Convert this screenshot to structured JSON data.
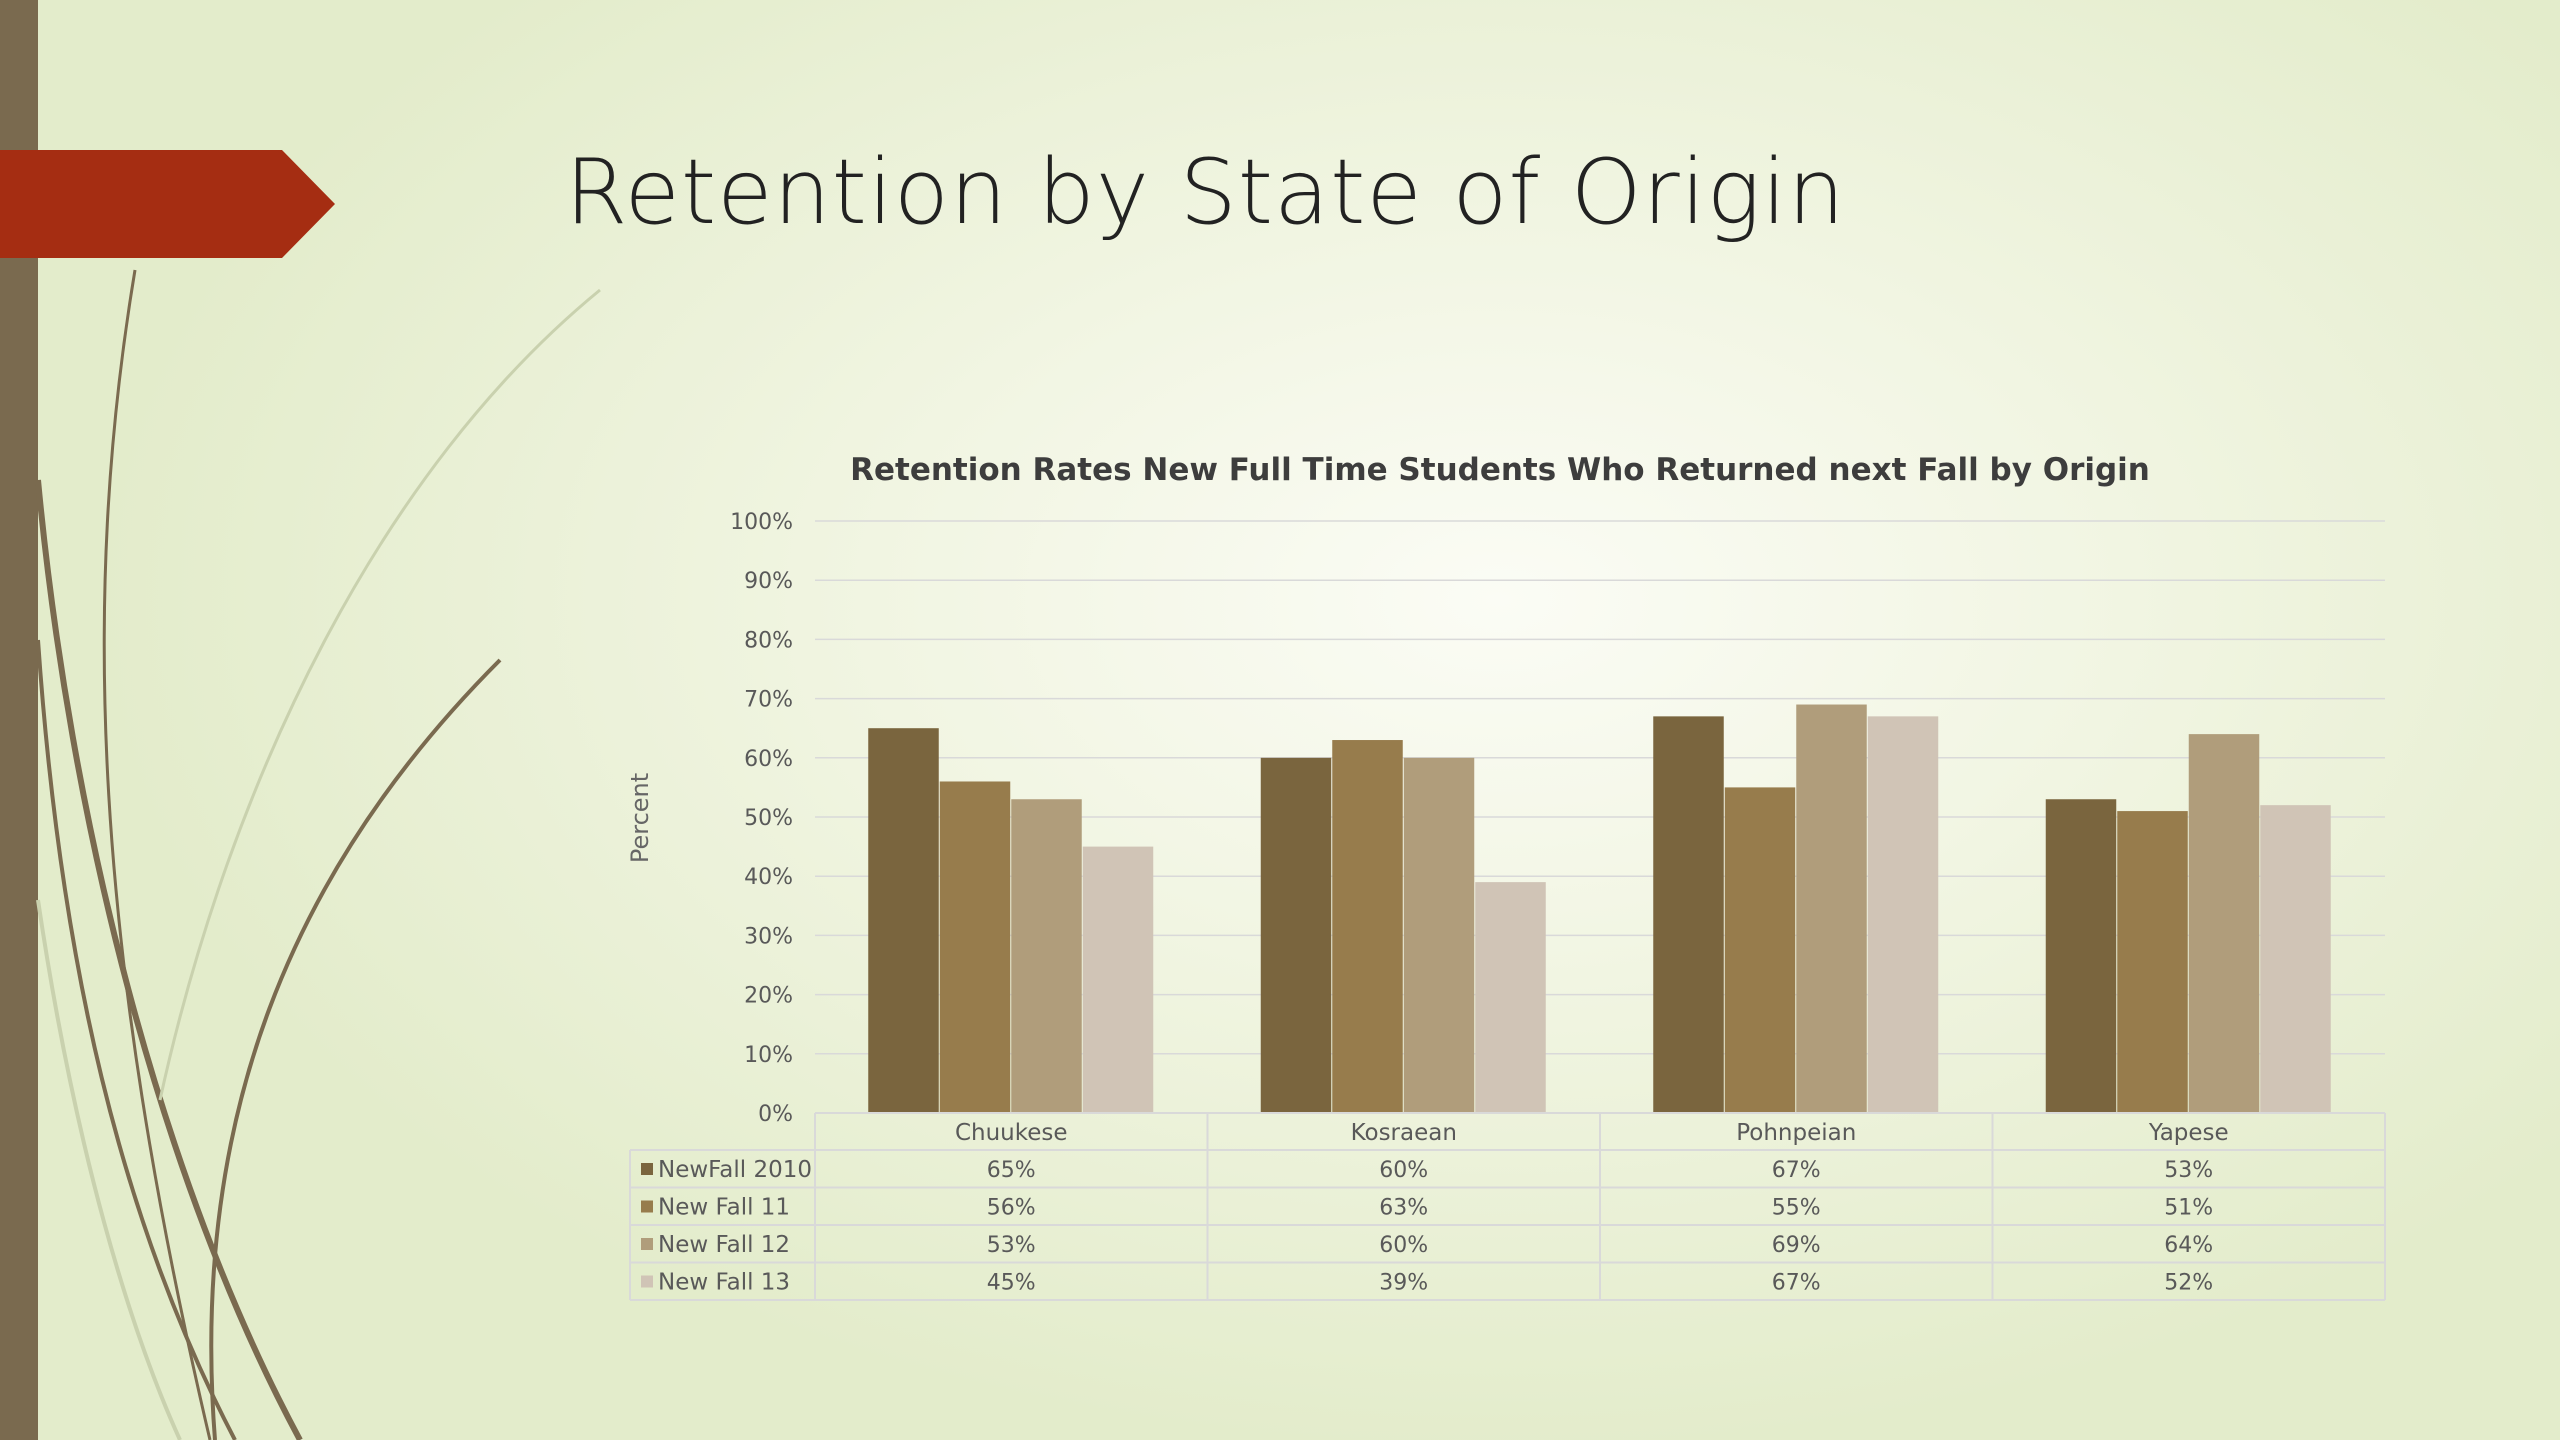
{
  "slide": {
    "title": "Retention by State of Origin"
  },
  "theme": {
    "accent_red": "#a52d12",
    "bar_color": "#7a6a4f"
  },
  "chart_data": {
    "type": "bar",
    "title": "Retention Rates New Full Time Students Who Returned next Fall by Origin",
    "ylabel": "Percent",
    "xlabel": "",
    "ylim": [
      0,
      100
    ],
    "y_ticks": [
      "0%",
      "10%",
      "20%",
      "30%",
      "40%",
      "50%",
      "60%",
      "70%",
      "80%",
      "90%",
      "100%"
    ],
    "grid": true,
    "legend": "data table",
    "categories": [
      "Chuukese",
      "Kosraean",
      "Pohnpeian",
      "Yapese"
    ],
    "series": [
      {
        "name": "NewFall 2010",
        "color": "#7a653e",
        "values": [
          65,
          60,
          67,
          53
        ],
        "labels": [
          "65%",
          "60%",
          "67%",
          "53%"
        ]
      },
      {
        "name": "New Fall 11",
        "color": "#977c4c",
        "values": [
          56,
          63,
          55,
          51
        ],
        "labels": [
          "56%",
          "63%",
          "55%",
          "51%"
        ]
      },
      {
        "name": "New Fall 12",
        "color": "#b09d7b",
        "values": [
          53,
          60,
          69,
          64
        ],
        "labels": [
          "53%",
          "60%",
          "69%",
          "64%"
        ]
      },
      {
        "name": "New Fall 13",
        "color": "#d0c4b6",
        "values": [
          45,
          39,
          67,
          52
        ],
        "labels": [
          "45%",
          "39%",
          "67%",
          "52%"
        ]
      }
    ]
  }
}
